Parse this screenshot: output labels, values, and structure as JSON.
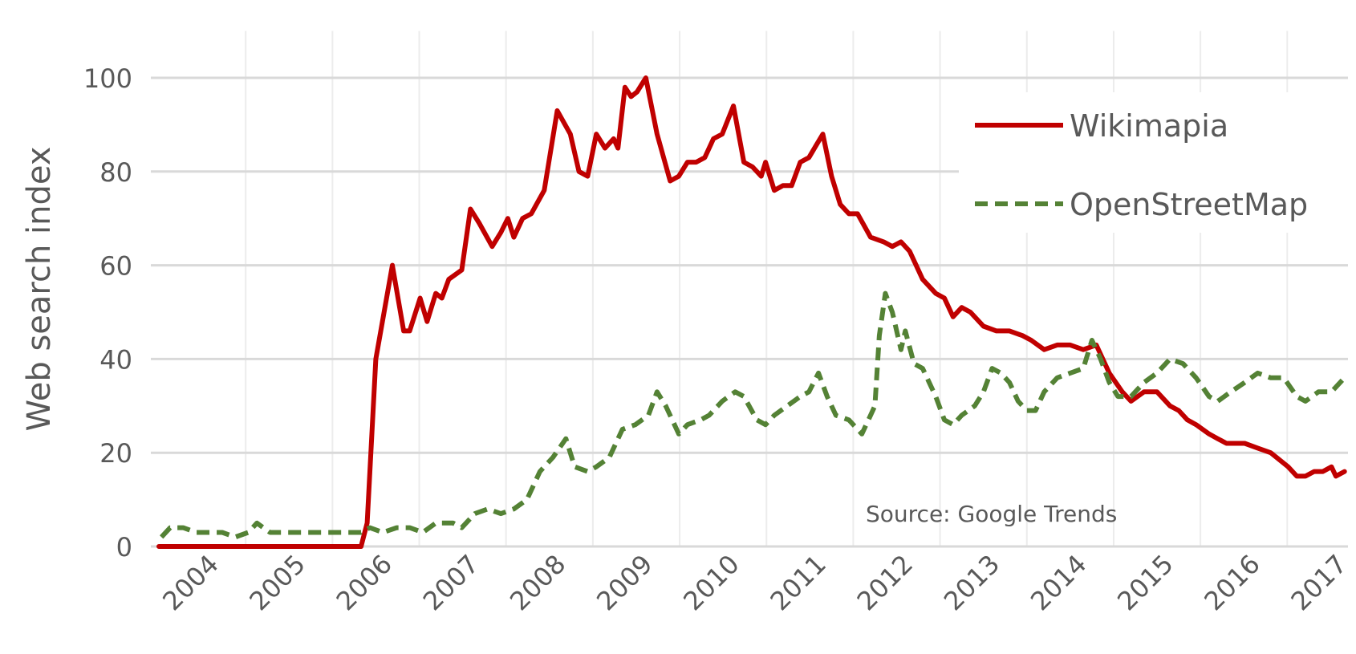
{
  "chart_data": {
    "type": "line",
    "title": "",
    "xlabel": "",
    "ylabel": "Web search index",
    "ylim": [
      0,
      110
    ],
    "xlim": [
      2004,
      2017.7
    ],
    "yticks": [
      0,
      20,
      40,
      60,
      80,
      100
    ],
    "xtick_labels": [
      "2004",
      "2005",
      "2006",
      "2007",
      "2008",
      "2009",
      "2010",
      "2011",
      "2012",
      "2013",
      "2014",
      "2015",
      "2016",
      "2017"
    ],
    "grid": true,
    "legend_position": "top-right",
    "annotation": "Source: Google Trends",
    "colors": {
      "Wikimapia": "#c00000",
      "OpenStreetMap": "#548235"
    },
    "series": [
      {
        "name": "Wikimapia",
        "style": "solid",
        "x": [
          2004.0,
          2006.33,
          2006.4,
          2006.5,
          2006.69,
          2006.82,
          2006.89,
          2007.01,
          2007.09,
          2007.19,
          2007.26,
          2007.34,
          2007.49,
          2007.59,
          2007.69,
          2007.84,
          2007.94,
          2008.02,
          2008.09,
          2008.19,
          2008.29,
          2008.44,
          2008.59,
          2008.74,
          2008.84,
          2008.94,
          2009.04,
          2009.14,
          2009.24,
          2009.29,
          2009.37,
          2009.44,
          2009.51,
          2009.61,
          2009.74,
          2009.89,
          2009.99,
          2010.09,
          2010.19,
          2010.29,
          2010.39,
          2010.49,
          2010.62,
          2010.74,
          2010.84,
          2010.94,
          2010.99,
          2011.09,
          2011.19,
          2011.29,
          2011.39,
          2011.49,
          2011.65,
          2011.75,
          2011.85,
          2011.95,
          2012.05,
          2012.2,
          2012.35,
          2012.45,
          2012.55,
          2012.65,
          2012.8,
          2012.95,
          2013.05,
          2013.15,
          2013.25,
          2013.35,
          2013.5,
          2013.65,
          2013.8,
          2013.95,
          2014.05,
          2014.2,
          2014.35,
          2014.5,
          2014.65,
          2014.8,
          2014.95,
          2015.1,
          2015.2,
          2015.35,
          2015.5,
          2015.65,
          2015.75,
          2015.85,
          2015.95,
          2016.1,
          2016.2,
          2016.3,
          2016.51,
          2016.66,
          2016.81,
          2017.01,
          2017.11,
          2017.21,
          2017.31,
          2017.41,
          2017.51,
          2017.56,
          2017.66
        ],
        "y": [
          0,
          0,
          5,
          40,
          60,
          46,
          46,
          53,
          48,
          54,
          53,
          57,
          59,
          72,
          69,
          64,
          67,
          70,
          66,
          70,
          71,
          76,
          93,
          88,
          80,
          79,
          88,
          85,
          87,
          85,
          98,
          96,
          97,
          100,
          88,
          78,
          79,
          82,
          82,
          83,
          87,
          88,
          94,
          82,
          81,
          79,
          82,
          76,
          77,
          77,
          82,
          83,
          88,
          79,
          73,
          71,
          71,
          66,
          65,
          64,
          65,
          63,
          57,
          54,
          53,
          49,
          51,
          50,
          47,
          46,
          46,
          45,
          44,
          42,
          43,
          43,
          42,
          43,
          37,
          33,
          31,
          33,
          33,
          30,
          29,
          27,
          26,
          24,
          23,
          22,
          22,
          21,
          20,
          17,
          15,
          15,
          16,
          16,
          17,
          15,
          16
        ]
      },
      {
        "name": "OpenStreetMap",
        "style": "dashed",
        "x": [
          2004.03,
          2004.13,
          2004.28,
          2004.43,
          2004.58,
          2004.73,
          2004.88,
          2005.03,
          2005.13,
          2005.28,
          2005.48,
          2005.78,
          2006.08,
          2006.33,
          2006.43,
          2006.58,
          2006.74,
          2006.89,
          2007.04,
          2007.19,
          2007.39,
          2007.49,
          2007.64,
          2007.79,
          2007.94,
          2008.09,
          2008.24,
          2008.39,
          2008.54,
          2008.69,
          2008.79,
          2008.94,
          2009.04,
          2009.19,
          2009.34,
          2009.49,
          2009.64,
          2009.74,
          2009.84,
          2009.99,
          2010.09,
          2010.24,
          2010.34,
          2010.49,
          2010.64,
          2010.74,
          2010.89,
          2010.99,
          2011.09,
          2011.24,
          2011.39,
          2011.49,
          2011.6,
          2011.7,
          2011.8,
          2011.95,
          2012.05,
          2012.1,
          2012.2,
          2012.25,
          2012.3,
          2012.37,
          2012.45,
          2012.55,
          2012.6,
          2012.7,
          2012.8,
          2012.95,
          2013.05,
          2013.15,
          2013.25,
          2013.4,
          2013.5,
          2013.6,
          2013.7,
          2013.8,
          2013.9,
          2014.0,
          2014.1,
          2014.2,
          2014.35,
          2014.5,
          2014.65,
          2014.75,
          2014.85,
          2014.95,
          2015.05,
          2015.2,
          2015.35,
          2015.5,
          2015.65,
          2015.8,
          2015.95,
          2016.1,
          2016.2,
          2016.35,
          2016.51,
          2016.66,
          2016.81,
          2016.96,
          2017.11,
          2017.21,
          2017.36,
          2017.51,
          2017.66
        ],
        "y": [
          2,
          4,
          4,
          3,
          3,
          3,
          2,
          3,
          5,
          3,
          3,
          3,
          3,
          3,
          4,
          3,
          4,
          4,
          3,
          5,
          5,
          4,
          7,
          8,
          7,
          8,
          10,
          16,
          19,
          23,
          17,
          16,
          17,
          19,
          25,
          26,
          28,
          33,
          30,
          24,
          26,
          27,
          28,
          31,
          33,
          32,
          27,
          26,
          28,
          30,
          32,
          33,
          37,
          32,
          28,
          27,
          25,
          24,
          28,
          30,
          45,
          54,
          50,
          42,
          46,
          39,
          38,
          32,
          27,
          26,
          28,
          30,
          33,
          38,
          37,
          35,
          31,
          29,
          29,
          33,
          36,
          37,
          38,
          44,
          40,
          35,
          32,
          32,
          35,
          37,
          40,
          39,
          36,
          32,
          31,
          33,
          35,
          37,
          36,
          36,
          32,
          31,
          33,
          33,
          36
        ]
      }
    ]
  }
}
